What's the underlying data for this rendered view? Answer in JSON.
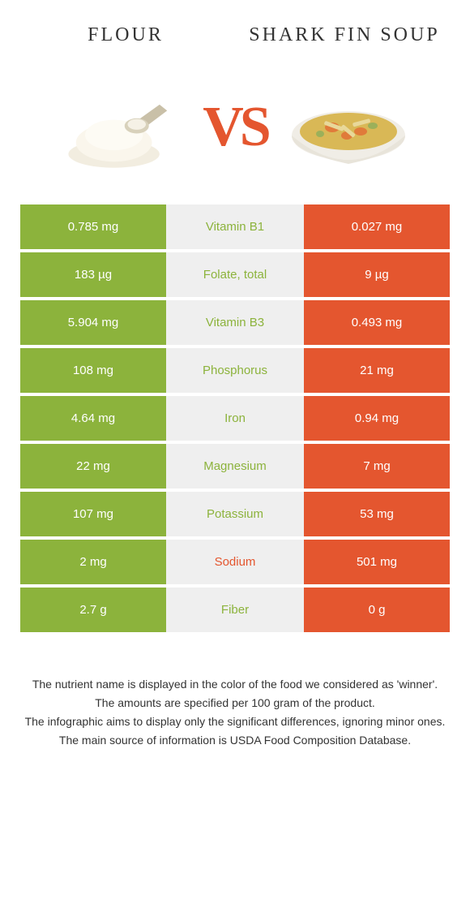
{
  "header": {
    "left_title": "FLOUR",
    "right_title": "SHARK FIN SOUP",
    "vs": "VS"
  },
  "colors": {
    "left_bg": "#8cb33c",
    "right_bg": "#e4562f",
    "mid_bg": "#efefef",
    "winner_left": "#8cb33c",
    "winner_right": "#e4562f"
  },
  "rows": [
    {
      "left": "0.785 mg",
      "mid": "Vitamin B1",
      "right": "0.027 mg",
      "winner": "left"
    },
    {
      "left": "183 µg",
      "mid": "Folate, total",
      "right": "9 µg",
      "winner": "left"
    },
    {
      "left": "5.904 mg",
      "mid": "Vitamin B3",
      "right": "0.493 mg",
      "winner": "left"
    },
    {
      "left": "108 mg",
      "mid": "Phosphorus",
      "right": "21 mg",
      "winner": "left"
    },
    {
      "left": "4.64 mg",
      "mid": "Iron",
      "right": "0.94 mg",
      "winner": "left"
    },
    {
      "left": "22 mg",
      "mid": "Magnesium",
      "right": "7 mg",
      "winner": "left"
    },
    {
      "left": "107 mg",
      "mid": "Potassium",
      "right": "53 mg",
      "winner": "left"
    },
    {
      "left": "2 mg",
      "mid": "Sodium",
      "right": "501 mg",
      "winner": "right"
    },
    {
      "left": "2.7 g",
      "mid": "Fiber",
      "right": "0 g",
      "winner": "left"
    }
  ],
  "footer": {
    "line1": "The nutrient name is displayed in the color of the food we considered as 'winner'.",
    "line2": "The amounts are specified per 100 gram of the product.",
    "line3": "The infographic aims to display only the significant differences, ignoring minor ones.",
    "line4": "The main source of information is USDA Food Composition Database."
  }
}
